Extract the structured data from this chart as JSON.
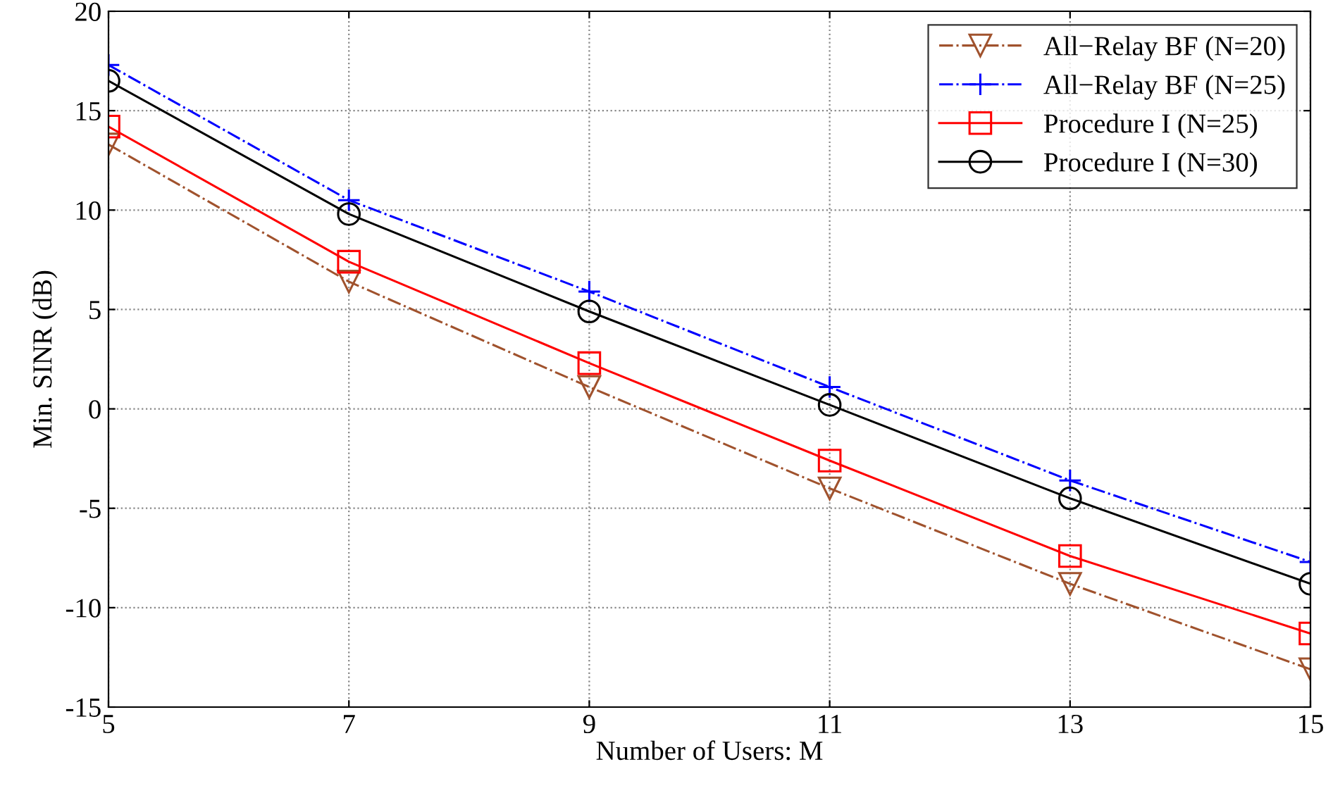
{
  "chart_data": {
    "type": "line",
    "xlabel": "Number of Users: M",
    "ylabel": "Min. SINR (dB)",
    "x": [
      5,
      7,
      9,
      11,
      13,
      15
    ],
    "series": [
      {
        "name": "All−Relay BF (N=20)",
        "color": "#a0522d",
        "marker": "triangle",
        "line_style": "dashdot",
        "values": [
          13.3,
          6.4,
          1.1,
          -4.0,
          -8.8,
          -13.1
        ]
      },
      {
        "name": "All−Relay BF (N=25)",
        "color": "#0000ff",
        "marker": "cross",
        "line_style": "dashdot",
        "values": [
          17.3,
          10.5,
          5.9,
          1.1,
          -3.6,
          -7.7
        ]
      },
      {
        "name": "Procedure I (N=25)",
        "color": "#ff0000",
        "marker": "square",
        "line_style": "solid",
        "values": [
          14.2,
          7.4,
          2.3,
          -2.6,
          -7.4,
          -11.3
        ]
      },
      {
        "name": "Procedure I (N=30)",
        "color": "#000000",
        "marker": "circle",
        "line_style": "solid",
        "values": [
          16.5,
          9.8,
          4.9,
          0.2,
          -4.5,
          -8.8
        ]
      }
    ],
    "xlim": [
      5,
      15
    ],
    "xticks": [
      5,
      7,
      9,
      11,
      13,
      15
    ],
    "ylim": [
      -15,
      20
    ],
    "yticks": [
      -15,
      -10,
      -5,
      0,
      5,
      10,
      15,
      20
    ],
    "grid": true,
    "legend": "top right"
  }
}
